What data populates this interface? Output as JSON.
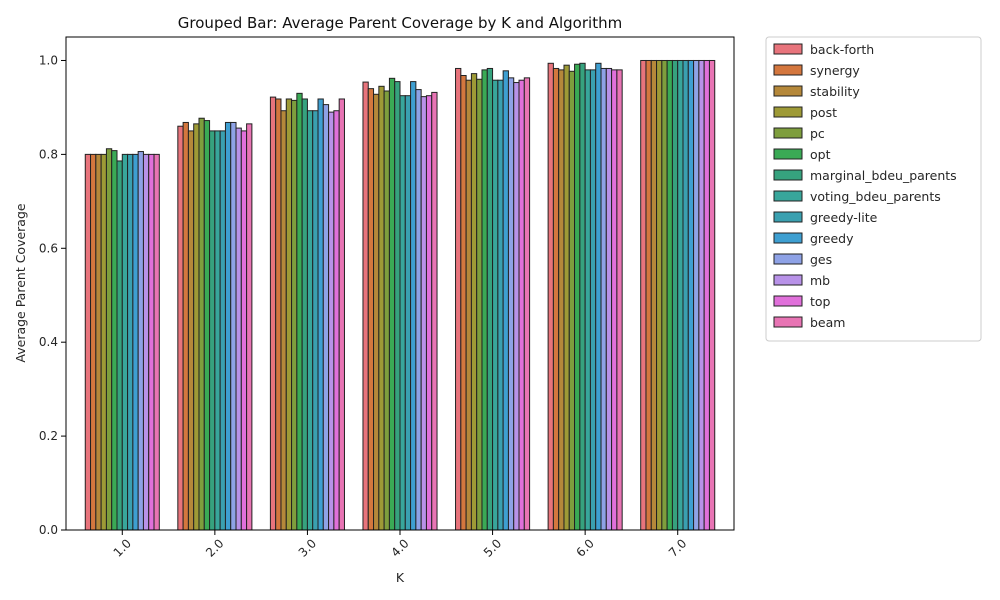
{
  "chart_data": {
    "type": "bar",
    "title": "Grouped Bar: Average Parent Coverage by K and Algorithm",
    "xlabel": "K",
    "ylabel": "Average Parent Coverage",
    "categories": [
      "1.0",
      "2.0",
      "3.0",
      "4.0",
      "5.0",
      "6.0",
      "7.0"
    ],
    "ylim": [
      0,
      1.05
    ],
    "yticks": [
      "0.0",
      "0.2",
      "0.4",
      "0.6",
      "0.8",
      "1.0"
    ],
    "ytick_values": [
      0.0,
      0.2,
      0.4,
      0.6,
      0.8,
      1.0
    ],
    "grid": false,
    "legend_position": "outside-right",
    "series": [
      {
        "name": "back-forth",
        "color": "#e8747c",
        "values": [
          0.8,
          0.86,
          0.922,
          0.954,
          0.983,
          0.994,
          1.0
        ]
      },
      {
        "name": "synergy",
        "color": "#d4773e",
        "values": [
          0.8,
          0.868,
          0.918,
          0.94,
          0.968,
          0.983,
          1.0
        ]
      },
      {
        "name": "stability",
        "color": "#b5883a",
        "values": [
          0.8,
          0.85,
          0.893,
          0.928,
          0.958,
          0.98,
          1.0
        ]
      },
      {
        "name": "post",
        "color": "#9e9a36",
        "values": [
          0.8,
          0.865,
          0.918,
          0.945,
          0.972,
          0.99,
          1.0
        ]
      },
      {
        "name": "pc",
        "color": "#7e9e3d",
        "values": [
          0.812,
          0.877,
          0.915,
          0.935,
          0.96,
          0.977,
          1.0
        ]
      },
      {
        "name": "opt",
        "color": "#3aaa55",
        "values": [
          0.808,
          0.872,
          0.93,
          0.962,
          0.98,
          0.992,
          1.0
        ]
      },
      {
        "name": "marginal_bdeu_parents",
        "color": "#36a27e",
        "values": [
          0.786,
          0.85,
          0.918,
          0.955,
          0.983,
          0.994,
          1.0
        ]
      },
      {
        "name": "voting_bdeu_parents",
        "color": "#38a69b",
        "values": [
          0.8,
          0.85,
          0.893,
          0.925,
          0.958,
          0.98,
          1.0
        ]
      },
      {
        "name": "greedy-lite",
        "color": "#3aa0b0",
        "values": [
          0.8,
          0.85,
          0.893,
          0.925,
          0.958,
          0.98,
          1.0
        ]
      },
      {
        "name": "greedy",
        "color": "#3e9fd1",
        "values": [
          0.8,
          0.868,
          0.918,
          0.955,
          0.978,
          0.994,
          1.0
        ]
      },
      {
        "name": "ges",
        "color": "#8ea2e6",
        "values": [
          0.806,
          0.868,
          0.906,
          0.938,
          0.963,
          0.983,
          1.0
        ]
      },
      {
        "name": "mb",
        "color": "#b892e8",
        "values": [
          0.8,
          0.856,
          0.89,
          0.923,
          0.953,
          0.983,
          1.0
        ]
      },
      {
        "name": "top",
        "color": "#e070da",
        "values": [
          0.8,
          0.85,
          0.893,
          0.925,
          0.958,
          0.98,
          1.0
        ]
      },
      {
        "name": "beam",
        "color": "#e874b4",
        "values": [
          0.8,
          0.865,
          0.918,
          0.932,
          0.963,
          0.98,
          1.0
        ]
      }
    ]
  }
}
